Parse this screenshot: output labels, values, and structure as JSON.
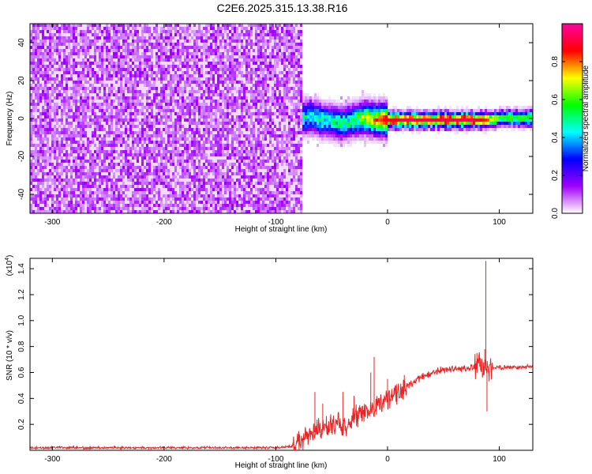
{
  "title": "C2E6.2025.315.13.38.R16",
  "chart_data": [
    {
      "type": "heatmap",
      "xlabel": "Height of straight line (km)",
      "ylabel": "Frequency (Hz)",
      "xlim": [
        -320,
        130
      ],
      "ylim": [
        -50,
        50
      ],
      "xticks": [
        -300,
        -200,
        -100,
        0,
        100
      ],
      "yticks": [
        -40,
        -20,
        0,
        20,
        40
      ],
      "colorbar": {
        "label": "Normalized spectral amplitude",
        "range": [
          0,
          1
        ],
        "ticks": [
          "0.0",
          "0.2",
          "0.4",
          "0.6",
          "0.8"
        ],
        "colors": [
          "#ffffff",
          "#a000ff",
          "#0000ff",
          "#00ffff",
          "#00ff00",
          "#ffff00",
          "#ff0000",
          "#ff00a0"
        ]
      },
      "noise_region": {
        "x_range": [
          -320,
          -78
        ],
        "amplitude_range": [
          0.0,
          0.15
        ]
      },
      "signal_track": {
        "x": [
          -78,
          -70,
          -60,
          -50,
          -40,
          -30,
          -20,
          -10,
          0,
          10,
          20,
          40,
          60,
          80,
          90,
          100,
          110,
          120,
          130
        ],
        "center_frequency": [
          1,
          2,
          0,
          -1,
          -2,
          0,
          1,
          0,
          0,
          0,
          0,
          0,
          0,
          0,
          0,
          1,
          1,
          1,
          1
        ],
        "peak_amplitude": [
          0.45,
          0.5,
          0.5,
          0.5,
          0.5,
          0.55,
          0.7,
          0.8,
          0.9,
          0.95,
          0.95,
          0.95,
          0.95,
          0.95,
          0.8,
          0.6,
          0.6,
          0.6,
          0.6
        ]
      }
    },
    {
      "type": "line",
      "xlabel": "Height of straight line (km)",
      "ylabel": "SNR (10 * v/v)",
      "y_scale_note": "(x10",
      "y_scale_exponent": "4",
      "y_scale_suffix": ")",
      "xlim": [
        -320,
        130
      ],
      "ylim": [
        0,
        1.48
      ],
      "xticks": [
        -300,
        -200,
        -100,
        0,
        100
      ],
      "yticks": [
        0.2,
        0.4,
        0.6,
        0.8,
        1.0,
        1.2,
        1.4
      ],
      "color": "#ee2222",
      "series": [
        {
          "name": "SNR",
          "x": [
            -320,
            -100,
            -85,
            -80,
            -75,
            -70,
            -65,
            -60,
            -55,
            -50,
            -45,
            -40,
            -35,
            -30,
            -25,
            -20,
            -15,
            -10,
            -5,
            0,
            5,
            10,
            15,
            20,
            25,
            30,
            35,
            40,
            50,
            60,
            70,
            80,
            85,
            88,
            92,
            100,
            110,
            120,
            130
          ],
          "y": [
            0.02,
            0.02,
            0.03,
            0.05,
            0.08,
            0.12,
            0.14,
            0.15,
            0.18,
            0.2,
            0.2,
            0.18,
            0.2,
            0.24,
            0.26,
            0.3,
            0.3,
            0.32,
            0.38,
            0.4,
            0.42,
            0.45,
            0.48,
            0.5,
            0.54,
            0.56,
            0.58,
            0.6,
            0.62,
            0.63,
            0.63,
            0.64,
            0.64,
            0.62,
            0.64,
            0.64,
            0.64,
            0.64,
            0.65
          ]
        }
      ],
      "spikes": [
        {
          "x": -65,
          "y": 0.45
        },
        {
          "x": -58,
          "y": 0.36
        },
        {
          "x": -40,
          "y": 0.45
        },
        {
          "x": -30,
          "y": 0.42
        },
        {
          "x": -15,
          "y": 0.6
        },
        {
          "x": -12,
          "y": 0.72
        },
        {
          "x": 0,
          "y": 0.55
        },
        {
          "x": 15,
          "y": 0.58
        },
        {
          "x": 80,
          "y": 0.75
        },
        {
          "x": 87,
          "y": 0.78
        },
        {
          "x": 88,
          "y": 1.46
        },
        {
          "x": 89,
          "y": 0.3
        }
      ]
    }
  ]
}
